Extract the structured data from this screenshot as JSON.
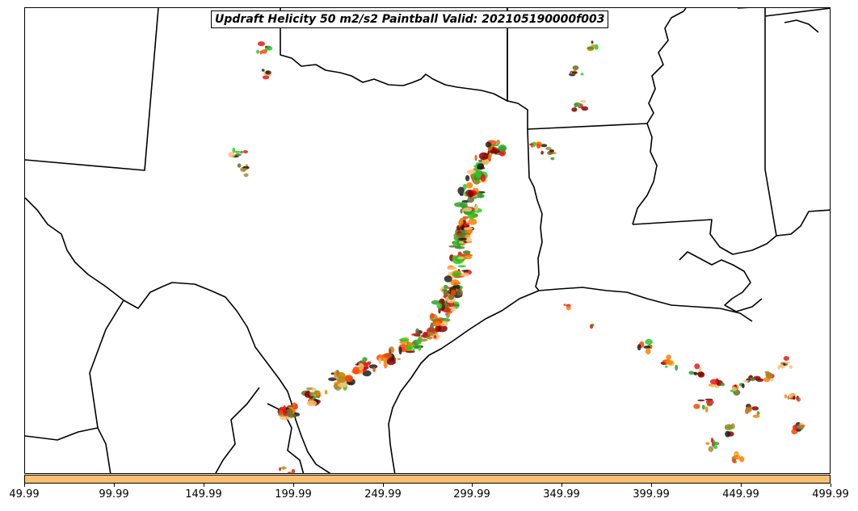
{
  "title": "Updraft Helicity 50 m2/s2 Paintball Valid: 202105190000f003",
  "colorbar": {
    "color": "#fdbf6f",
    "ticks": [
      "49.99",
      "99.99",
      "149.99",
      "199.99",
      "249.99",
      "299.99",
      "349.99",
      "399.99",
      "449.99",
      "499.99"
    ]
  },
  "colors": {
    "paintball_palette": [
      "#e31a1c",
      "#33a02c",
      "#1f1f1f",
      "#ff7f00",
      "#fdbf6f",
      "#a68c2a",
      "#8b0000",
      "#22cc22",
      "#6b6b2a",
      "#ff4500"
    ]
  }
}
